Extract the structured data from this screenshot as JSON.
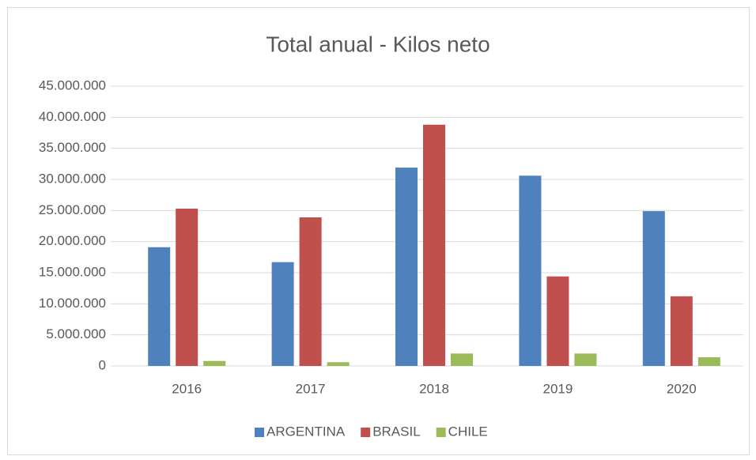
{
  "chart_data": {
    "type": "bar",
    "title": "Total anual - Kilos neto",
    "categories": [
      "2016",
      "2017",
      "2018",
      "2019",
      "2020"
    ],
    "series": [
      {
        "name": "ARGENTINA",
        "color": "#4f81bd",
        "values": [
          19100000,
          16700000,
          31900000,
          30600000,
          24900000
        ]
      },
      {
        "name": "BRASIL",
        "color": "#c0504d",
        "values": [
          25300000,
          23900000,
          38800000,
          14400000,
          11200000
        ]
      },
      {
        "name": "CHILE",
        "color": "#9bbb59",
        "values": [
          800000,
          600000,
          2000000,
          2000000,
          1400000
        ]
      }
    ],
    "ylim": [
      0,
      45000000
    ],
    "yticks": [
      0,
      {
        "value": 5000000,
        "label": "5.000.000"
      },
      {
        "value": 10000000,
        "label": "10.000.000"
      },
      {
        "value": 15000000,
        "label": "15.000.000"
      },
      {
        "value": 20000000,
        "label": "20.000.000"
      },
      {
        "value": 25000000,
        "label": "25.000.000"
      },
      {
        "value": 30000000,
        "label": "30.000.000"
      },
      {
        "value": 35000000,
        "label": "35.000.000"
      },
      {
        "value": 40000000,
        "label": "40.000.000"
      },
      {
        "value": 45000000,
        "label": "45.000.000"
      }
    ],
    "grid": true,
    "legend": "bottom"
  }
}
